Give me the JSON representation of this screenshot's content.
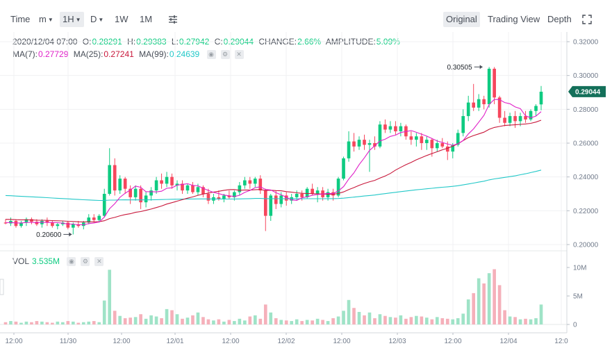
{
  "toolbar": {
    "time_label": "Time",
    "minute_label": "m",
    "hour_label": "1H",
    "day_label": "D",
    "week_label": "1W",
    "month_label": "1M",
    "tabs": [
      {
        "label": "Original"
      },
      {
        "label": "Trading View"
      },
      {
        "label": "Depth"
      }
    ]
  },
  "ohlc": {
    "date": "2020/12/04 07:00",
    "o_label": "O:",
    "o": "0.28291",
    "h_label": "H:",
    "h": "0.29383",
    "l_label": "L:",
    "l": "0.27942",
    "c_label": "C:",
    "c": "0.29044",
    "change_label": "CHANGE:",
    "change": "2.66%",
    "amp_label": "AMPLITUDE:",
    "amp": "5.09%"
  },
  "ma": {
    "ma7_label": "MA(7):",
    "ma7": "0.27729",
    "ma25_label": "MA(25):",
    "ma25": "0.27241",
    "ma99_label": "MA(99):",
    "ma99": "0.24639"
  },
  "vol": {
    "label": "VOL",
    "value": "3.535M"
  },
  "colors": {
    "up": "#0ecb81",
    "down": "#f6465d",
    "ma7": "#e020c8",
    "ma25": "#c8173a",
    "ma99": "#22c8c8"
  },
  "chart_data": {
    "type": "candlestick",
    "price_axis": {
      "ticks": [
        "0.32000",
        "0.30000",
        "0.28000",
        "0.26000",
        "0.24000",
        "0.22000",
        "0.20000"
      ],
      "ylim": [
        0.2,
        0.32
      ]
    },
    "volume_axis": {
      "ticks": [
        "10M",
        "5M",
        "0"
      ],
      "ylim": [
        0,
        10000000
      ]
    },
    "time_ticks": [
      "12:00",
      "11/30",
      "12:00",
      "12/01",
      "12:00",
      "12/02",
      "12:00",
      "12/03",
      "12:00",
      "12/04",
      "12:0"
    ],
    "last_price": "0.29044",
    "high_marker": "0.30505",
    "low_marker": "0.20600",
    "candles": [
      [
        0.213,
        0.215,
        0.212,
        0.2125
      ],
      [
        0.2125,
        0.216,
        0.211,
        0.214
      ],
      [
        0.214,
        0.215,
        0.21,
        0.211
      ],
      [
        0.211,
        0.214,
        0.21,
        0.213
      ],
      [
        0.213,
        0.216,
        0.211,
        0.215
      ],
      [
        0.215,
        0.216,
        0.212,
        0.2135
      ],
      [
        0.2135,
        0.215,
        0.211,
        0.212
      ],
      [
        0.212,
        0.215,
        0.21,
        0.214
      ],
      [
        0.214,
        0.216,
        0.211,
        0.213
      ],
      [
        0.213,
        0.214,
        0.21,
        0.211
      ],
      [
        0.211,
        0.213,
        0.209,
        0.212
      ],
      [
        0.212,
        0.214,
        0.211,
        0.213
      ],
      [
        0.213,
        0.214,
        0.209,
        0.21
      ],
      [
        0.21,
        0.213,
        0.206,
        0.212
      ],
      [
        0.212,
        0.214,
        0.21,
        0.211
      ],
      [
        0.211,
        0.214,
        0.209,
        0.213
      ],
      [
        0.213,
        0.218,
        0.212,
        0.216
      ],
      [
        0.216,
        0.218,
        0.213,
        0.2145
      ],
      [
        0.2145,
        0.218,
        0.213,
        0.217
      ],
      [
        0.217,
        0.233,
        0.216,
        0.23
      ],
      [
        0.23,
        0.257,
        0.229,
        0.247
      ],
      [
        0.247,
        0.251,
        0.229,
        0.232
      ],
      [
        0.232,
        0.241,
        0.23,
        0.239
      ],
      [
        0.239,
        0.24,
        0.23,
        0.233
      ],
      [
        0.233,
        0.235,
        0.224,
        0.228
      ],
      [
        0.228,
        0.235,
        0.226,
        0.233
      ],
      [
        0.233,
        0.235,
        0.221,
        0.225
      ],
      [
        0.225,
        0.231,
        0.222,
        0.229
      ],
      [
        0.229,
        0.234,
        0.226,
        0.232
      ],
      [
        0.232,
        0.24,
        0.23,
        0.238
      ],
      [
        0.238,
        0.242,
        0.233,
        0.236
      ],
      [
        0.236,
        0.243,
        0.234,
        0.24
      ],
      [
        0.24,
        0.242,
        0.233,
        0.235
      ],
      [
        0.235,
        0.238,
        0.232,
        0.236
      ],
      [
        0.236,
        0.238,
        0.23,
        0.232
      ],
      [
        0.232,
        0.236,
        0.23,
        0.235
      ],
      [
        0.235,
        0.237,
        0.23,
        0.231
      ],
      [
        0.231,
        0.236,
        0.229,
        0.234
      ],
      [
        0.234,
        0.235,
        0.228,
        0.23
      ],
      [
        0.23,
        0.233,
        0.224,
        0.226
      ],
      [
        0.226,
        0.23,
        0.224,
        0.228
      ],
      [
        0.228,
        0.232,
        0.226,
        0.227
      ],
      [
        0.227,
        0.23,
        0.225,
        0.229
      ],
      [
        0.229,
        0.232,
        0.227,
        0.228
      ],
      [
        0.228,
        0.232,
        0.226,
        0.231
      ],
      [
        0.231,
        0.237,
        0.229,
        0.235
      ],
      [
        0.235,
        0.24,
        0.233,
        0.238
      ],
      [
        0.238,
        0.24,
        0.233,
        0.236
      ],
      [
        0.236,
        0.24,
        0.234,
        0.239
      ],
      [
        0.239,
        0.241,
        0.23,
        0.232
      ],
      [
        0.232,
        0.233,
        0.208,
        0.217
      ],
      [
        0.217,
        0.23,
        0.214,
        0.229
      ],
      [
        0.229,
        0.232,
        0.221,
        0.224
      ],
      [
        0.224,
        0.231,
        0.222,
        0.229
      ],
      [
        0.229,
        0.231,
        0.223,
        0.226
      ],
      [
        0.226,
        0.23,
        0.224,
        0.228
      ],
      [
        0.228,
        0.232,
        0.226,
        0.23
      ],
      [
        0.23,
        0.232,
        0.226,
        0.228
      ],
      [
        0.228,
        0.234,
        0.227,
        0.233
      ],
      [
        0.233,
        0.236,
        0.229,
        0.23
      ],
      [
        0.23,
        0.234,
        0.225,
        0.232
      ],
      [
        0.232,
        0.234,
        0.226,
        0.228
      ],
      [
        0.228,
        0.233,
        0.226,
        0.231
      ],
      [
        0.231,
        0.233,
        0.226,
        0.229
      ],
      [
        0.229,
        0.24,
        0.228,
        0.239
      ],
      [
        0.239,
        0.252,
        0.238,
        0.251
      ],
      [
        0.251,
        0.267,
        0.249,
        0.261
      ],
      [
        0.261,
        0.266,
        0.255,
        0.258
      ],
      [
        0.258,
        0.264,
        0.256,
        0.262
      ],
      [
        0.262,
        0.265,
        0.256,
        0.259
      ],
      [
        0.259,
        0.262,
        0.243,
        0.26
      ],
      [
        0.26,
        0.264,
        0.256,
        0.258
      ],
      [
        0.258,
        0.273,
        0.257,
        0.271
      ],
      [
        0.271,
        0.274,
        0.266,
        0.268
      ],
      [
        0.268,
        0.273,
        0.266,
        0.27
      ],
      [
        0.27,
        0.273,
        0.265,
        0.267
      ],
      [
        0.267,
        0.272,
        0.264,
        0.27
      ],
      [
        0.27,
        0.271,
        0.262,
        0.264
      ],
      [
        0.264,
        0.267,
        0.259,
        0.262
      ],
      [
        0.262,
        0.266,
        0.258,
        0.264
      ],
      [
        0.264,
        0.266,
        0.256,
        0.26
      ],
      [
        0.26,
        0.264,
        0.256,
        0.262
      ],
      [
        0.262,
        0.263,
        0.252,
        0.257
      ],
      [
        0.257,
        0.262,
        0.255,
        0.26
      ],
      [
        0.26,
        0.263,
        0.257,
        0.258
      ],
      [
        0.258,
        0.261,
        0.25,
        0.255
      ],
      [
        0.255,
        0.26,
        0.251,
        0.259
      ],
      [
        0.259,
        0.268,
        0.258,
        0.266
      ],
      [
        0.266,
        0.28,
        0.264,
        0.276
      ],
      [
        0.276,
        0.288,
        0.273,
        0.284
      ],
      [
        0.284,
        0.295,
        0.279,
        0.281
      ],
      [
        0.281,
        0.289,
        0.279,
        0.286
      ],
      [
        0.286,
        0.288,
        0.28,
        0.283
      ],
      [
        0.283,
        0.305,
        0.281,
        0.304
      ],
      [
        0.304,
        0.305,
        0.283,
        0.287
      ],
      [
        0.287,
        0.288,
        0.272,
        0.275
      ],
      [
        0.275,
        0.279,
        0.27,
        0.272
      ],
      [
        0.272,
        0.278,
        0.27,
        0.276
      ],
      [
        0.276,
        0.279,
        0.269,
        0.273
      ],
      [
        0.273,
        0.278,
        0.27,
        0.276
      ],
      [
        0.276,
        0.279,
        0.272,
        0.274
      ],
      [
        0.274,
        0.28,
        0.273,
        0.279
      ],
      [
        0.279,
        0.283,
        0.276,
        0.282
      ],
      [
        0.2829,
        0.2938,
        0.2794,
        0.2904
      ]
    ],
    "volume": [
      0.4,
      0.6,
      0.5,
      0.3,
      0.5,
      0.4,
      0.6,
      0.5,
      0.4,
      0.3,
      0.5,
      0.4,
      0.6,
      0.5,
      0.3,
      0.4,
      0.5,
      0.6,
      0.4,
      4.2,
      9.6,
      2.4,
      1.5,
      1.1,
      1.2,
      1.3,
      1.8,
      1.0,
      1.6,
      1.4,
      1.1,
      2.7,
      2.5,
      1.8,
      1.0,
      1.2,
      1.6,
      2.1,
      1.3,
      0.9,
      0.7,
      0.9,
      0.5,
      0.8,
      0.6,
      1.0,
      0.7,
      1.4,
      1.6,
      1.0,
      3.5,
      2.1,
      1.1,
      0.8,
      0.7,
      0.6,
      0.9,
      0.6,
      0.8,
      0.7,
      1.0,
      0.8,
      0.6,
      1.1,
      1.4,
      2.4,
      4.3,
      2.9,
      2.2,
      1.6,
      2.1,
      1.1,
      1.8,
      1.5,
      1.3,
      1.2,
      1.6,
      1.0,
      1.3,
      1.5,
      1.4,
      1.2,
      0.9,
      1.3,
      1.1,
      1.0,
      0.9,
      1.1,
      1.9,
      4.4,
      5.5,
      8.1,
      7.2,
      9.0,
      9.7,
      6.9,
      2.5,
      1.4,
      1.3,
      0.9,
      1.0,
      0.9,
      1.1,
      3.5
    ]
  }
}
